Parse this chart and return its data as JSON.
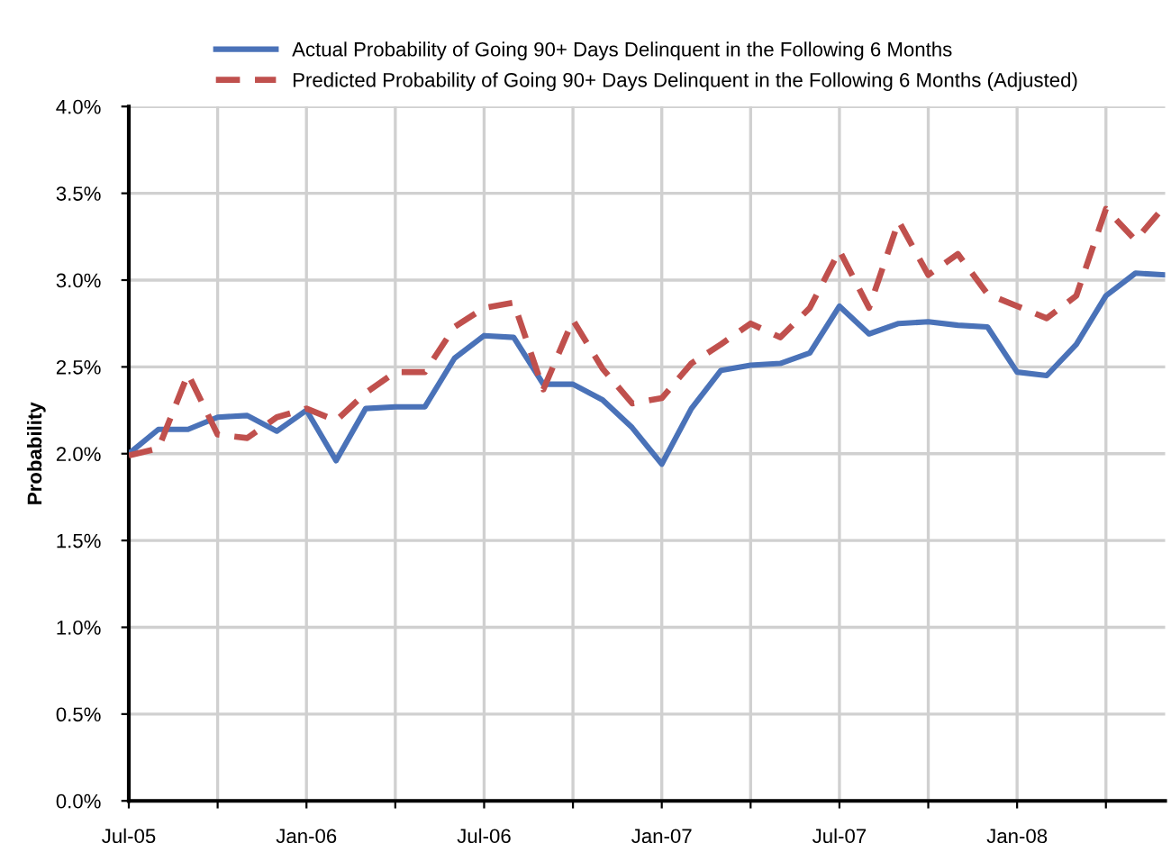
{
  "chart_data": {
    "type": "line",
    "ylabel": "Probability",
    "x": [
      "2005-07",
      "2005-08",
      "2005-09",
      "2005-10",
      "2005-11",
      "2005-12",
      "2006-01",
      "2006-02",
      "2006-03",
      "2006-04",
      "2006-05",
      "2006-06",
      "2006-07",
      "2006-08",
      "2006-09",
      "2006-10",
      "2006-11",
      "2006-12",
      "2007-01",
      "2007-02",
      "2007-03",
      "2007-04",
      "2007-05",
      "2007-06",
      "2007-07",
      "2007-08",
      "2007-09",
      "2007-10",
      "2007-11",
      "2007-12",
      "2008-01",
      "2008-02",
      "2008-03",
      "2008-04",
      "2008-05",
      "2008-06"
    ],
    "series": [
      {
        "name": "Actual Probability of Going 90+ Days Delinquent in the Following 6 Months",
        "color": "#4a72b8",
        "line_style": "solid",
        "values": [
          2.0,
          2.14,
          2.14,
          2.21,
          2.22,
          2.13,
          2.25,
          1.96,
          2.26,
          2.27,
          2.27,
          2.55,
          2.68,
          2.67,
          2.4,
          2.4,
          2.31,
          2.15,
          1.94,
          2.26,
          2.48,
          2.51,
          2.52,
          2.58,
          2.85,
          2.69,
          2.75,
          2.76,
          2.74,
          2.73,
          2.47,
          2.45,
          2.63,
          2.91,
          3.04,
          3.03
        ]
      },
      {
        "name": "Predicted Probability of Going 90+ Days Delinquent in the Following 6 Months (Adjusted)",
        "color": "#c0504d",
        "line_style": "dashed",
        "values": [
          1.99,
          2.03,
          2.46,
          2.11,
          2.09,
          2.21,
          2.26,
          2.19,
          2.35,
          2.47,
          2.47,
          2.73,
          2.84,
          2.87,
          2.37,
          2.77,
          2.49,
          2.29,
          2.32,
          2.52,
          2.63,
          2.75,
          2.67,
          2.84,
          3.17,
          2.84,
          3.34,
          3.03,
          3.15,
          2.92,
          2.85,
          2.78,
          2.91,
          3.41,
          3.23,
          3.43
        ]
      }
    ],
    "xlim": [
      "2005-07",
      "2008-06"
    ],
    "xticks": [
      {
        "value": "2005-07",
        "label": "Jul-05"
      },
      {
        "value": "2005-10",
        "label": null
      },
      {
        "value": "2006-01",
        "label": "Jan-06"
      },
      {
        "value": "2006-04",
        "label": null
      },
      {
        "value": "2006-07",
        "label": "Jul-06"
      },
      {
        "value": "2006-10",
        "label": null
      },
      {
        "value": "2007-01",
        "label": "Jan-07"
      },
      {
        "value": "2007-04",
        "label": null
      },
      {
        "value": "2007-07",
        "label": "Jul-07"
      },
      {
        "value": "2007-10",
        "label": null
      },
      {
        "value": "2008-01",
        "label": "Jan-08"
      },
      {
        "value": "2008-04",
        "label": null
      }
    ],
    "ylim": [
      0,
      4
    ],
    "yticks": [
      {
        "value": 0,
        "label": "0.0%"
      },
      {
        "value": 0.5,
        "label": "0.5%"
      },
      {
        "value": 1,
        "label": "1.0%"
      },
      {
        "value": 1.5,
        "label": "1.5%"
      },
      {
        "value": 2,
        "label": "2.0%"
      },
      {
        "value": 2.5,
        "label": "2.5%"
      },
      {
        "value": 3,
        "label": "3.0%"
      },
      {
        "value": 3.5,
        "label": "3.5%"
      },
      {
        "value": 4,
        "label": "4.0%"
      }
    ],
    "grid": true,
    "legend": "top",
    "marker": "none"
  }
}
